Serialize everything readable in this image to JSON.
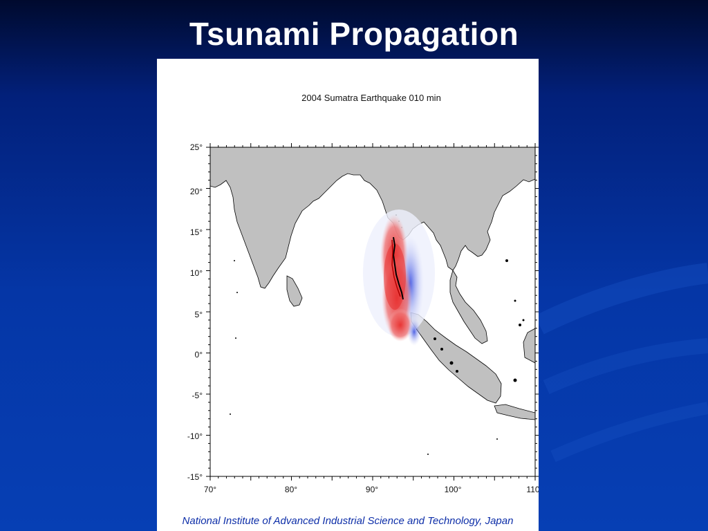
{
  "slide": {
    "title": "Tsunami Propagation"
  },
  "map": {
    "title": "2004 Sumatra Earthquake  010 min",
    "lat_ticks": [
      "25°",
      "20°",
      "15°",
      "10°",
      "5°",
      "0°",
      "-5°",
      "-10°",
      "-15°"
    ],
    "lon_ticks": [
      "70°",
      "80°",
      "90°",
      "100°",
      "110"
    ],
    "extent": {
      "lon": [
        70,
        110
      ],
      "lat": [
        -15,
        25
      ]
    },
    "colors": {
      "land": "#c0c0c0",
      "ocean": "#ffffff",
      "uplift": "#e8302f",
      "subsidence": "#3a4fe0",
      "coast": "#000000"
    }
  },
  "credit": "National Institute of Advanced Industrial Science and Technology, Japan"
}
